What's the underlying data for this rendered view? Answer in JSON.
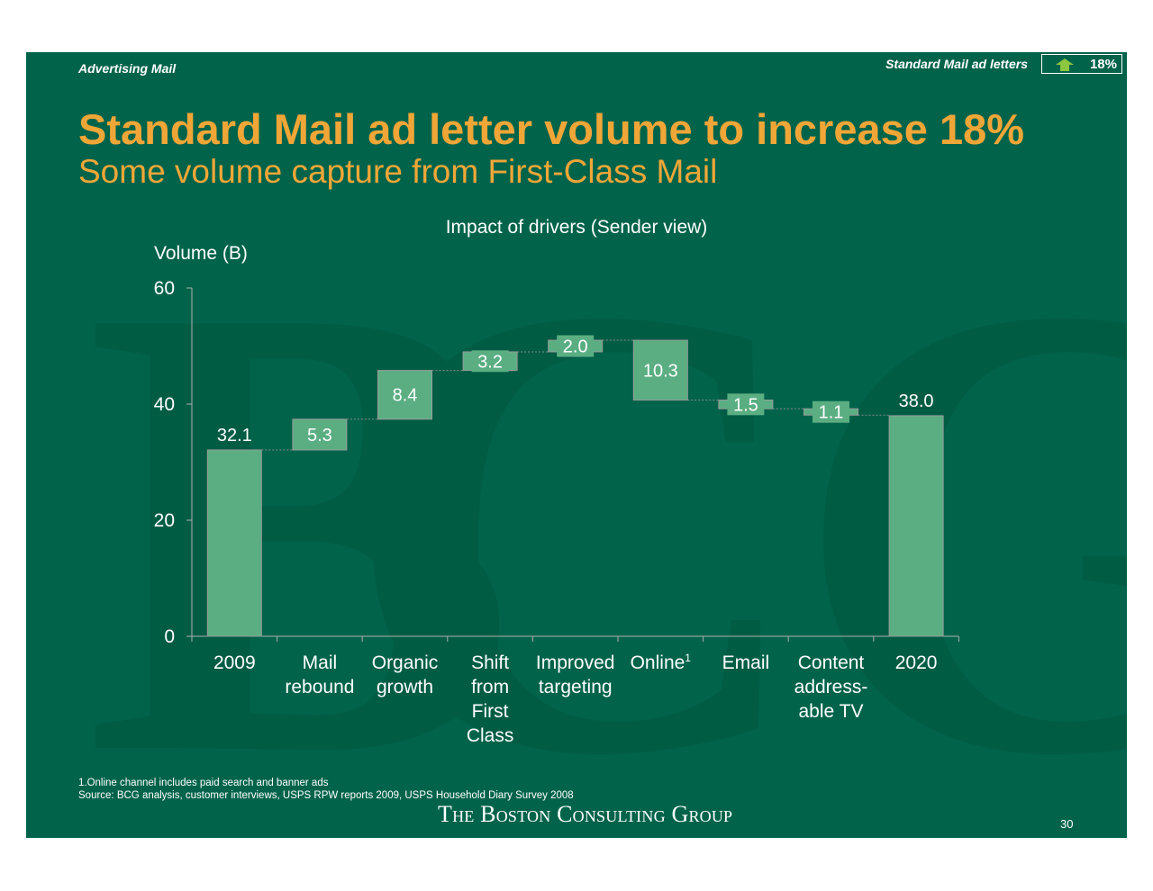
{
  "header": {
    "section": "Advertising  Mail",
    "tagline": "Standard Mail ad letters",
    "badge_value": "18%",
    "badge_icon": "up-arrow-icon"
  },
  "title": "Standard Mail ad letter volume to increase 18%",
  "subtitle": "Some volume capture from First-Class Mail",
  "chart_data": {
    "type": "bar",
    "subtype": "waterfall",
    "title": "Impact of drivers (Sender view)",
    "ylabel": "Volume (B)",
    "xlabel": "",
    "ylim": [
      0,
      60
    ],
    "yticks": [
      0,
      20,
      40,
      60
    ],
    "categories": [
      [
        "2009"
      ],
      [
        "Mail",
        "rebound"
      ],
      [
        "Organic",
        "growth"
      ],
      [
        "Shift",
        "from",
        "First",
        "Class"
      ],
      [
        "Improved",
        "targeting"
      ],
      [
        "Online"
      ],
      [
        "Email"
      ],
      [
        "Content",
        "address-",
        "able TV"
      ],
      [
        "2020"
      ]
    ],
    "category_footnotes": [
      "",
      "",
      "",
      "",
      "",
      "1",
      "",
      "",
      ""
    ],
    "kind": [
      "total",
      "up",
      "up",
      "up",
      "up",
      "down",
      "down",
      "down",
      "total"
    ],
    "values": [
      32.1,
      5.3,
      8.4,
      3.2,
      2.0,
      10.3,
      1.5,
      1.1,
      38.0
    ],
    "value_labels": [
      "32.1",
      "5.3",
      "8.4",
      "3.2",
      "2.0",
      "10.3",
      "1.5",
      "1.1",
      "38.0"
    ],
    "bar_color": "#5aae82",
    "grid": false
  },
  "footnote": "1.Online channel includes paid search and banner ads",
  "source": "Source: BCG analysis, customer interviews, USPS RPW reports 2009, USPS Household Diary Survey 2008",
  "logo_text": "The Boston Consulting Group",
  "page_number": "30",
  "colors": {
    "background": "#00634a",
    "accent": "#f0a637",
    "badge_arrow": "#8cc63f"
  }
}
